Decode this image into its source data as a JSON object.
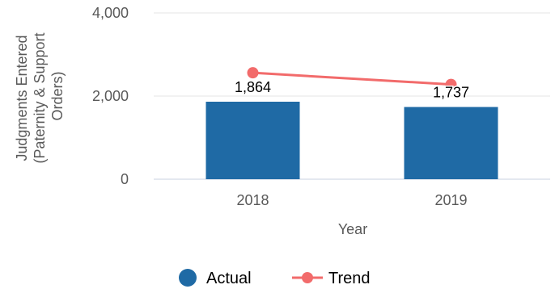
{
  "chart_data": {
    "type": "bar",
    "categories": [
      "2018",
      "2019"
    ],
    "series": [
      {
        "name": "Actual",
        "kind": "bar",
        "color": "#1f6aa5",
        "values": [
          1864,
          1737
        ]
      },
      {
        "name": "Trend",
        "kind": "line",
        "color": "#f26b6b",
        "values": [
          2560,
          2280
        ]
      }
    ],
    "data_labels": [
      "1,864",
      "1,737"
    ],
    "xlabel": "Year",
    "ylabel": [
      "Judgments Entered",
      "(Paternity & Support",
      "Orders)"
    ],
    "ylim": [
      0,
      4000
    ],
    "yticks": [
      {
        "value": 0,
        "label": "0"
      },
      {
        "value": 2000,
        "label": "2,000"
      },
      {
        "value": 4000,
        "label": "4,000"
      }
    ],
    "grid": true,
    "legend_position": "bottom"
  }
}
